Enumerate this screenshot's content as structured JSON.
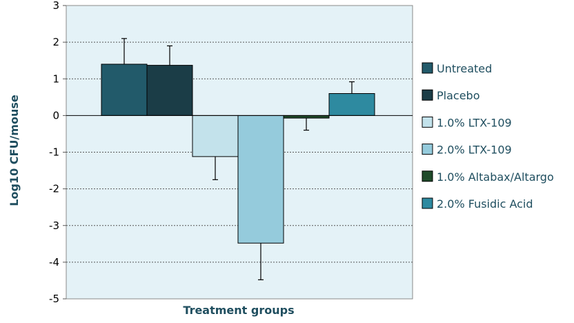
{
  "chart_data": {
    "type": "bar",
    "title": "",
    "xlabel": "Treatment groups",
    "ylabel": "Log10 CFU/mouse",
    "ylim": [
      -5,
      3
    ],
    "yticks": [
      "3",
      "2",
      "1",
      "0",
      "-1",
      "-2",
      "-3",
      "-4",
      "-5"
    ],
    "ytick_values": [
      3,
      2,
      1,
      0,
      -1,
      -2,
      -3,
      -4,
      -5
    ],
    "grid": true,
    "legend_position": "right",
    "series": [
      {
        "name": "Untreated",
        "value": 1.4,
        "error": 0.7,
        "color": "#225a6a"
      },
      {
        "name": "Placebo",
        "value": 1.37,
        "error": 0.53,
        "color": "#1b3d47"
      },
      {
        "name": "1.0% LTX-109",
        "value": -1.12,
        "error": 0.63,
        "color": "#c3e2eb"
      },
      {
        "name": "2.0% LTX-109",
        "value": -3.48,
        "error": 1.0,
        "color": "#95cbdc"
      },
      {
        "name": "1.0% Altabax/Altargo",
        "value": -0.07,
        "error": 0.33,
        "color": "#1f4a2a"
      },
      {
        "name": "2.0% Fusidic Acid",
        "value": 0.6,
        "error": 0.32,
        "color": "#2e8aa0"
      }
    ]
  }
}
